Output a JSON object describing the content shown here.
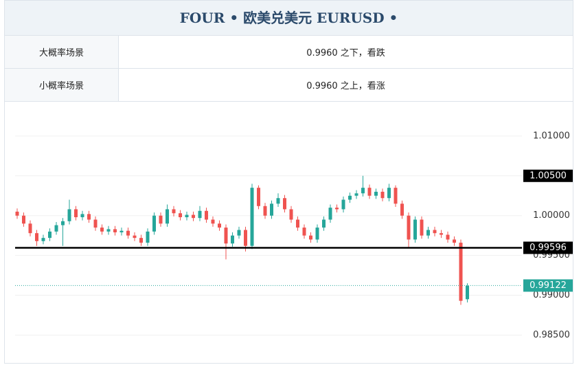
{
  "header": {
    "title": "FOUR • 欧美兑美元 EURUSD •"
  },
  "table": {
    "rows": [
      [
        "大概率场景",
        "0.9960 之下，看跌"
      ],
      [
        "小概率场景",
        "0.9960 之上，看涨"
      ]
    ]
  },
  "chart_data": {
    "type": "candlestick",
    "up_color": "#26a69a",
    "down_color": "#ef5350",
    "ylim": [
      0.9815,
      1.0137
    ],
    "yticks": [
      {
        "value": 1.01,
        "label": "1.01000"
      },
      {
        "value": 1.005,
        "label": "1.00500"
      },
      {
        "value": 1.0,
        "label": "1.00000"
      },
      {
        "value": 0.995,
        "label": "0.99500"
      },
      {
        "value": 0.99,
        "label": "0.99000"
      },
      {
        "value": 0.985,
        "label": "0.98500"
      }
    ],
    "grid": true,
    "price_lines": [
      {
        "value": 1.005,
        "label": "1.00500",
        "color": "#000000",
        "line": false
      },
      {
        "value": 0.99596,
        "label": "0.99596",
        "color": "#000000",
        "line": true
      },
      {
        "value": 0.99122,
        "label": "0.99122",
        "color": "#26a69a",
        "line": true
      }
    ],
    "open": [
      1.0005,
      1.0,
      0.999,
      0.9978,
      0.9968,
      0.9972,
      0.998,
      0.9988,
      0.9993,
      1.0008,
      0.9998,
      1.0002,
      0.9995,
      0.9985,
      0.998,
      0.9983,
      0.9979,
      0.9981,
      0.9975,
      0.9972,
      0.9966,
      0.998,
      1.0,
      0.999,
      1.0008,
      1.0003,
      0.9998,
      1.0001,
      0.9997,
      1.0006,
      0.9995,
      0.999,
      0.9985,
      0.9965,
      0.9975,
      0.9982,
      0.9962,
      1.0035,
      1.0012,
      1.0,
      1.0015,
      1.0022,
      1.0008,
      0.9995,
      0.9985,
      0.9975,
      0.997,
      0.9985,
      0.9995,
      1.001,
      1.0008,
      1.002,
      1.0025,
      1.0028,
      1.0035,
      1.0025,
      1.003,
      1.0022,
      1.0035,
      1.0015,
      1.0,
      0.997,
      0.9995,
      0.9975,
      0.9982,
      0.9978,
      0.9976,
      0.997,
      0.9966,
      0.9895
    ],
    "high": [
      1.0009,
      1.0004,
      0.9994,
      0.9982,
      0.9976,
      0.9984,
      0.9992,
      0.9997,
      1.002,
      1.0012,
      1.0006,
      1.0006,
      0.9999,
      0.9989,
      0.9987,
      0.9987,
      0.9985,
      0.9985,
      0.9979,
      0.9976,
      0.9984,
      1.0004,
      1.0004,
      1.0014,
      1.0012,
      1.0007,
      1.0005,
      1.0005,
      1.0012,
      1.001,
      0.9999,
      0.9994,
      0.9989,
      0.9979,
      0.9986,
      0.9986,
      1.004,
      1.0038,
      1.0016,
      1.0019,
      1.0028,
      1.0026,
      1.0012,
      0.9999,
      0.9989,
      0.9979,
      0.9989,
      0.9999,
      1.0014,
      1.0014,
      1.0024,
      1.0029,
      1.0032,
      1.005,
      1.0039,
      1.0034,
      1.0034,
      1.004,
      1.0038,
      1.0019,
      1.0004,
      0.9999,
      0.9999,
      0.9986,
      0.9986,
      0.9982,
      0.998,
      0.9974,
      0.997,
      0.9915
    ],
    "low": [
      0.9996,
      0.9986,
      0.9974,
      0.9962,
      0.9964,
      0.9968,
      0.9976,
      0.9962,
      0.9989,
      0.9994,
      0.9994,
      0.9991,
      0.9981,
      0.9976,
      0.9976,
      0.9975,
      0.9975,
      0.9971,
      0.9968,
      0.9962,
      0.9962,
      0.9976,
      0.9986,
      0.9986,
      0.9999,
      0.9994,
      0.9994,
      0.9993,
      0.9993,
      0.9991,
      0.9986,
      0.9981,
      0.9945,
      0.9961,
      0.9971,
      0.9955,
      0.9958,
      1.0008,
      0.9996,
      0.9996,
      1.0011,
      1.0004,
      0.9991,
      0.9981,
      0.9971,
      0.9966,
      0.9966,
      0.9981,
      0.9991,
      1.0004,
      1.0004,
      1.0016,
      1.0021,
      1.0024,
      1.0021,
      1.0021,
      1.0018,
      1.0018,
      1.0011,
      0.9996,
      0.996,
      0.9966,
      0.9971,
      0.9971,
      0.9974,
      0.9972,
      0.9966,
      0.9962,
      0.9888,
      0.9891
    ],
    "close": [
      1.0,
      0.999,
      0.9978,
      0.9968,
      0.9972,
      0.998,
      0.9988,
      0.9993,
      1.0008,
      0.9998,
      1.0002,
      0.9995,
      0.9985,
      0.998,
      0.9983,
      0.9979,
      0.9981,
      0.9975,
      0.9972,
      0.9966,
      0.998,
      1.0,
      0.999,
      1.0008,
      1.0003,
      0.9998,
      1.0001,
      0.9997,
      1.0006,
      0.9995,
      0.999,
      0.9985,
      0.9965,
      0.9975,
      0.9982,
      0.9962,
      1.0035,
      1.0012,
      1.0,
      1.0015,
      1.0022,
      1.0008,
      0.9995,
      0.9985,
      0.9975,
      0.997,
      0.9985,
      0.9995,
      1.001,
      1.0008,
      1.002,
      1.0025,
      1.0028,
      1.0035,
      1.0025,
      1.003,
      1.0022,
      1.0035,
      1.0015,
      1.0,
      0.997,
      0.9995,
      0.9975,
      0.9982,
      0.9978,
      0.9976,
      0.997,
      0.9966,
      0.9893,
      0.9912
    ]
  }
}
